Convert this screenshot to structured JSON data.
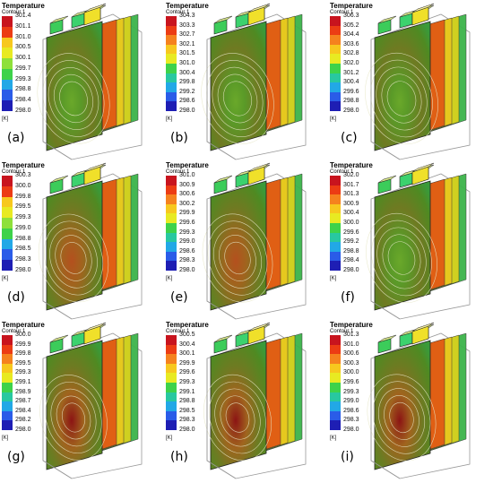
{
  "panels": [
    {
      "label": "(a)",
      "legend_title": "Temperature",
      "legend_subtitle": "Contour 1",
      "unit": "[K]",
      "ticks": [
        "301.4",
        "301.1",
        "301.0",
        "300.5",
        "300.1",
        "299.7",
        "299.3",
        "298.8",
        "298.4",
        "298.0"
      ],
      "hot_spot": 0.2
    },
    {
      "label": "(b)",
      "legend_title": "Temperature",
      "legend_subtitle": "Contour 1",
      "unit": "[K]",
      "ticks": [
        "304.3",
        "303.3",
        "302.7",
        "302.1",
        "301.5",
        "301.0",
        "300.4",
        "299.8",
        "299.2",
        "298.6",
        "298.0"
      ],
      "hot_spot": 0.15
    },
    {
      "label": "(c)",
      "legend_title": "Temperature",
      "legend_subtitle": "Contour 1",
      "unit": "[K]",
      "ticks": [
        "306.3",
        "305.2",
        "304.4",
        "303.6",
        "302.8",
        "302.0",
        "301.2",
        "300.4",
        "299.6",
        "298.8",
        "298.0"
      ],
      "hot_spot": 0.1
    },
    {
      "label": "(d)",
      "legend_title": "Temperature",
      "legend_subtitle": "Contour 1",
      "unit": "[K]",
      "ticks": [
        "300.3",
        "300.0",
        "299.8",
        "299.5",
        "299.3",
        "299.0",
        "298.8",
        "298.5",
        "298.3",
        "298.0"
      ],
      "hot_spot": 0.55
    },
    {
      "label": "(e)",
      "legend_title": "Temperature",
      "legend_subtitle": "Contour 1",
      "unit": "[K]",
      "ticks": [
        "301.0",
        "300.9",
        "300.6",
        "300.2",
        "299.9",
        "299.6",
        "299.3",
        "299.0",
        "298.6",
        "298.3",
        "298.0"
      ],
      "hot_spot": 0.5
    },
    {
      "label": "(f)",
      "legend_title": "Temperature",
      "legend_subtitle": "Contour 1",
      "unit": "[K]",
      "ticks": [
        "302.0",
        "301.7",
        "301.3",
        "300.9",
        "300.4",
        "300.0",
        "299.6",
        "299.2",
        "298.8",
        "298.4",
        "298.0"
      ],
      "hot_spot": 0.35
    },
    {
      "label": "(g)",
      "legend_title": "Temperature",
      "legend_subtitle": "Contour 1",
      "unit": "[K]",
      "ticks": [
        "300.0",
        "299.9",
        "299.8",
        "299.5",
        "299.3",
        "299.1",
        "298.9",
        "298.7",
        "298.4",
        "298.2",
        "298.0"
      ],
      "hot_spot": 0.9
    },
    {
      "label": "(h)",
      "legend_title": "Temperature",
      "legend_subtitle": "Contour 1",
      "unit": "[K]",
      "ticks": [
        "300.5",
        "300.4",
        "300.1",
        "299.9",
        "299.6",
        "299.3",
        "299.1",
        "298.8",
        "298.5",
        "298.3",
        "298.0"
      ],
      "hot_spot": 0.85
    },
    {
      "label": "(i)",
      "legend_title": "Temperature",
      "legend_subtitle": "Contour 1",
      "unit": "[K]",
      "ticks": [
        "301.3",
        "301.0",
        "300.6",
        "300.3",
        "300.0",
        "299.6",
        "299.3",
        "299.0",
        "298.6",
        "298.3",
        "298.0"
      ],
      "hot_spot": 0.75
    }
  ],
  "colormap": [
    "#c8141e",
    "#ec3c14",
    "#f5821e",
    "#f7c81e",
    "#e8ea22",
    "#8ee03a",
    "#3ed24a",
    "#28c8a0",
    "#22a8e6",
    "#2a5ce8",
    "#1e1eb4"
  ]
}
